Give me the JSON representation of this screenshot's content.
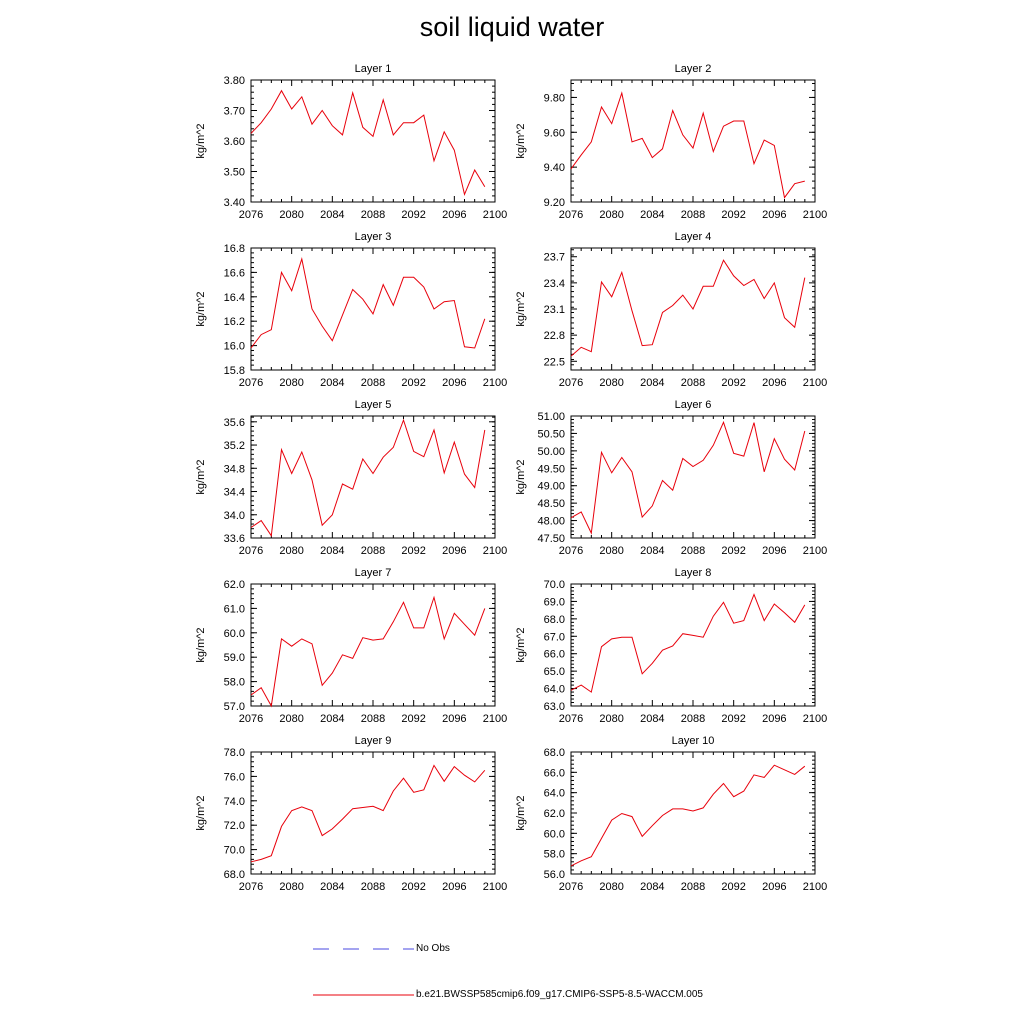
{
  "title": "soil liquid water",
  "legend": {
    "obs_label": "No Obs",
    "model_label": "b.e21.BWSSP585cmip6.f09_g17.CMIP6-SSP5-8.5-WACCM.005",
    "obs_color": "#4a4ae0",
    "model_color": "#e8000b"
  },
  "chart_data": [
    {
      "type": "line",
      "title": "Layer 1",
      "ylabel": "kg/m^2",
      "x": [
        2076,
        2077,
        2078,
        2079,
        2080,
        2081,
        2082,
        2083,
        2084,
        2085,
        2086,
        2087,
        2088,
        2089,
        2090,
        2091,
        2092,
        2093,
        2094,
        2095,
        2096,
        2097,
        2098,
        2099
      ],
      "xlim": [
        2076,
        2100
      ],
      "xticks": [
        2076,
        2080,
        2084,
        2088,
        2092,
        2096,
        2100
      ],
      "ylim": [
        3.4,
        3.8
      ],
      "yticks": [
        "3.40",
        "3.50",
        "3.60",
        "3.70",
        "3.80"
      ],
      "series": [
        {
          "values": [
            3.625,
            3.66,
            3.705,
            3.765,
            3.705,
            3.745,
            3.655,
            3.7,
            3.65,
            3.62,
            3.758,
            3.645,
            3.615,
            3.735,
            3.62,
            3.66,
            3.66,
            3.685,
            3.535,
            3.63,
            3.57,
            3.425,
            3.505,
            3.45
          ]
        }
      ]
    },
    {
      "type": "line",
      "title": "Layer 2",
      "ylabel": "kg/m^2",
      "x": [
        2076,
        2077,
        2078,
        2079,
        2080,
        2081,
        2082,
        2083,
        2084,
        2085,
        2086,
        2087,
        2088,
        2089,
        2090,
        2091,
        2092,
        2093,
        2094,
        2095,
        2096,
        2097,
        2098,
        2099
      ],
      "xlim": [
        2076,
        2100
      ],
      "xticks": [
        2076,
        2080,
        2084,
        2088,
        2092,
        2096,
        2100
      ],
      "ylim": [
        9.2,
        9.9
      ],
      "yticks": [
        "9.20",
        "9.40",
        "9.60",
        "9.80"
      ],
      "series": [
        {
          "values": [
            9.39,
            9.47,
            9.545,
            9.745,
            9.65,
            9.825,
            9.545,
            9.565,
            9.455,
            9.505,
            9.725,
            9.585,
            9.51,
            9.71,
            9.49,
            9.635,
            9.665,
            9.665,
            9.42,
            9.555,
            9.525,
            9.225,
            9.305,
            9.32
          ]
        }
      ]
    },
    {
      "type": "line",
      "title": "Layer 3",
      "ylabel": "kg/m^2",
      "x": [
        2076,
        2077,
        2078,
        2079,
        2080,
        2081,
        2082,
        2083,
        2084,
        2085,
        2086,
        2087,
        2088,
        2089,
        2090,
        2091,
        2092,
        2093,
        2094,
        2095,
        2096,
        2097,
        2098,
        2099
      ],
      "xlim": [
        2076,
        2100
      ],
      "xticks": [
        2076,
        2080,
        2084,
        2088,
        2092,
        2096,
        2100
      ],
      "ylim": [
        15.8,
        16.8
      ],
      "yticks": [
        "15.8",
        "16.0",
        "16.2",
        "16.4",
        "16.6",
        "16.8"
      ],
      "series": [
        {
          "values": [
            15.98,
            16.09,
            16.13,
            16.6,
            16.45,
            16.71,
            16.3,
            16.16,
            16.04,
            16.25,
            16.46,
            16.38,
            16.26,
            16.5,
            16.33,
            16.56,
            16.56,
            16.48,
            16.3,
            16.36,
            16.37,
            15.99,
            15.98,
            16.22
          ]
        }
      ]
    },
    {
      "type": "line",
      "title": "Layer 4",
      "ylabel": "kg/m^2",
      "x": [
        2076,
        2077,
        2078,
        2079,
        2080,
        2081,
        2082,
        2083,
        2084,
        2085,
        2086,
        2087,
        2088,
        2089,
        2090,
        2091,
        2092,
        2093,
        2094,
        2095,
        2096,
        2097,
        2098,
        2099
      ],
      "xlim": [
        2076,
        2100
      ],
      "xticks": [
        2076,
        2080,
        2084,
        2088,
        2092,
        2096,
        2100
      ],
      "ylim": [
        22.4,
        23.8
      ],
      "yticks": [
        "22.5",
        "22.8",
        "23.1",
        "23.4",
        "23.7"
      ],
      "series": [
        {
          "values": [
            22.56,
            22.66,
            22.61,
            23.41,
            23.24,
            23.52,
            23.08,
            22.68,
            22.69,
            23.06,
            23.14,
            23.26,
            23.1,
            23.36,
            23.36,
            23.66,
            23.48,
            23.37,
            23.44,
            23.22,
            23.4,
            23.0,
            22.89,
            23.46
          ]
        }
      ]
    },
    {
      "type": "line",
      "title": "Layer 5",
      "ylabel": "kg/m^2",
      "x": [
        2076,
        2077,
        2078,
        2079,
        2080,
        2081,
        2082,
        2083,
        2084,
        2085,
        2086,
        2087,
        2088,
        2089,
        2090,
        2091,
        2092,
        2093,
        2094,
        2095,
        2096,
        2097,
        2098,
        2099
      ],
      "xlim": [
        2076,
        2100
      ],
      "xticks": [
        2076,
        2080,
        2084,
        2088,
        2092,
        2096,
        2100
      ],
      "ylim": [
        33.6,
        35.7
      ],
      "yticks": [
        "33.6",
        "34.0",
        "34.4",
        "34.8",
        "35.2",
        "35.6"
      ],
      "series": [
        {
          "values": [
            33.78,
            33.9,
            33.64,
            35.12,
            34.71,
            35.08,
            34.6,
            33.82,
            34.0,
            34.53,
            34.44,
            34.96,
            34.71,
            34.99,
            35.16,
            35.63,
            35.09,
            35.0,
            35.46,
            34.72,
            35.25,
            34.7,
            34.47,
            35.46
          ]
        }
      ]
    },
    {
      "type": "line",
      "title": "Layer 6",
      "ylabel": "kg/m^2",
      "x": [
        2076,
        2077,
        2078,
        2079,
        2080,
        2081,
        2082,
        2083,
        2084,
        2085,
        2086,
        2087,
        2088,
        2089,
        2090,
        2091,
        2092,
        2093,
        2094,
        2095,
        2096,
        2097,
        2098,
        2099
      ],
      "xlim": [
        2076,
        2100
      ],
      "xticks": [
        2076,
        2080,
        2084,
        2088,
        2092,
        2096,
        2100
      ],
      "ylim": [
        47.5,
        51.0
      ],
      "yticks": [
        "47.50",
        "48.00",
        "48.50",
        "49.00",
        "49.50",
        "50.00",
        "50.50",
        "51.00"
      ],
      "series": [
        {
          "values": [
            48.08,
            48.25,
            47.64,
            49.96,
            49.37,
            49.81,
            49.4,
            48.1,
            48.42,
            49.15,
            48.87,
            49.78,
            49.55,
            49.73,
            50.16,
            50.82,
            49.93,
            49.85,
            50.81,
            49.4,
            50.35,
            49.76,
            49.45,
            50.57
          ]
        }
      ]
    },
    {
      "type": "line",
      "title": "Layer 7",
      "ylabel": "kg/m^2",
      "x": [
        2076,
        2077,
        2078,
        2079,
        2080,
        2081,
        2082,
        2083,
        2084,
        2085,
        2086,
        2087,
        2088,
        2089,
        2090,
        2091,
        2092,
        2093,
        2094,
        2095,
        2096,
        2097,
        2098,
        2099
      ],
      "xlim": [
        2076,
        2100
      ],
      "xticks": [
        2076,
        2080,
        2084,
        2088,
        2092,
        2096,
        2100
      ],
      "ylim": [
        57.0,
        62.0
      ],
      "yticks": [
        "57.0",
        "58.0",
        "59.0",
        "60.0",
        "61.0",
        "62.0"
      ],
      "series": [
        {
          "values": [
            57.45,
            57.75,
            57.0,
            59.75,
            59.45,
            59.75,
            59.55,
            57.85,
            58.35,
            59.1,
            58.95,
            59.8,
            59.7,
            59.75,
            60.45,
            61.25,
            60.2,
            60.2,
            61.45,
            59.75,
            60.8,
            60.35,
            59.9,
            61.0
          ]
        }
      ]
    },
    {
      "type": "line",
      "title": "Layer 8",
      "ylabel": "kg/m^2",
      "x": [
        2076,
        2077,
        2078,
        2079,
        2080,
        2081,
        2082,
        2083,
        2084,
        2085,
        2086,
        2087,
        2088,
        2089,
        2090,
        2091,
        2092,
        2093,
        2094,
        2095,
        2096,
        2097,
        2098,
        2099
      ],
      "xlim": [
        2076,
        2100
      ],
      "xticks": [
        2076,
        2080,
        2084,
        2088,
        2092,
        2096,
        2100
      ],
      "ylim": [
        63.0,
        70.0
      ],
      "yticks": [
        "63.0",
        "64.0",
        "65.0",
        "66.0",
        "67.0",
        "68.0",
        "69.0",
        "70.0"
      ],
      "series": [
        {
          "values": [
            63.9,
            64.2,
            63.8,
            66.4,
            66.85,
            66.95,
            66.95,
            64.85,
            65.45,
            66.2,
            66.45,
            67.15,
            67.05,
            66.95,
            68.15,
            68.95,
            67.75,
            67.9,
            69.4,
            67.9,
            68.85,
            68.35,
            67.8,
            68.8
          ]
        }
      ]
    },
    {
      "type": "line",
      "title": "Layer 9",
      "ylabel": "kg/m^2",
      "x": [
        2076,
        2077,
        2078,
        2079,
        2080,
        2081,
        2082,
        2083,
        2084,
        2085,
        2086,
        2087,
        2088,
        2089,
        2090,
        2091,
        2092,
        2093,
        2094,
        2095,
        2096,
        2097,
        2098,
        2099
      ],
      "xlim": [
        2076,
        2100
      ],
      "xticks": [
        2076,
        2080,
        2084,
        2088,
        2092,
        2096,
        2100
      ],
      "ylim": [
        68.0,
        78.0
      ],
      "yticks": [
        "68.0",
        "70.0",
        "72.0",
        "74.0",
        "76.0",
        "78.0"
      ],
      "series": [
        {
          "values": [
            69.0,
            69.2,
            69.5,
            71.9,
            73.2,
            73.5,
            73.2,
            71.15,
            71.7,
            72.5,
            73.35,
            73.45,
            73.55,
            73.2,
            74.8,
            75.85,
            74.7,
            74.9,
            76.9,
            75.6,
            76.8,
            76.1,
            75.55,
            76.5
          ]
        }
      ]
    },
    {
      "type": "line",
      "title": "Layer 10",
      "ylabel": "kg/m^2",
      "x": [
        2076,
        2077,
        2078,
        2079,
        2080,
        2081,
        2082,
        2083,
        2084,
        2085,
        2086,
        2087,
        2088,
        2089,
        2090,
        2091,
        2092,
        2093,
        2094,
        2095,
        2096,
        2097,
        2098,
        2099
      ],
      "xlim": [
        2076,
        2100
      ],
      "xticks": [
        2076,
        2080,
        2084,
        2088,
        2092,
        2096,
        2100
      ],
      "ylim": [
        56.0,
        68.0
      ],
      "yticks": [
        "56.0",
        "58.0",
        "60.0",
        "62.0",
        "64.0",
        "66.0",
        "68.0"
      ],
      "series": [
        {
          "values": [
            56.8,
            57.3,
            57.7,
            59.5,
            61.3,
            61.95,
            61.65,
            59.7,
            60.75,
            61.75,
            62.4,
            62.4,
            62.2,
            62.5,
            63.85,
            64.9,
            63.6,
            64.15,
            65.75,
            65.5,
            66.7,
            66.25,
            65.8,
            66.6
          ]
        }
      ]
    }
  ]
}
